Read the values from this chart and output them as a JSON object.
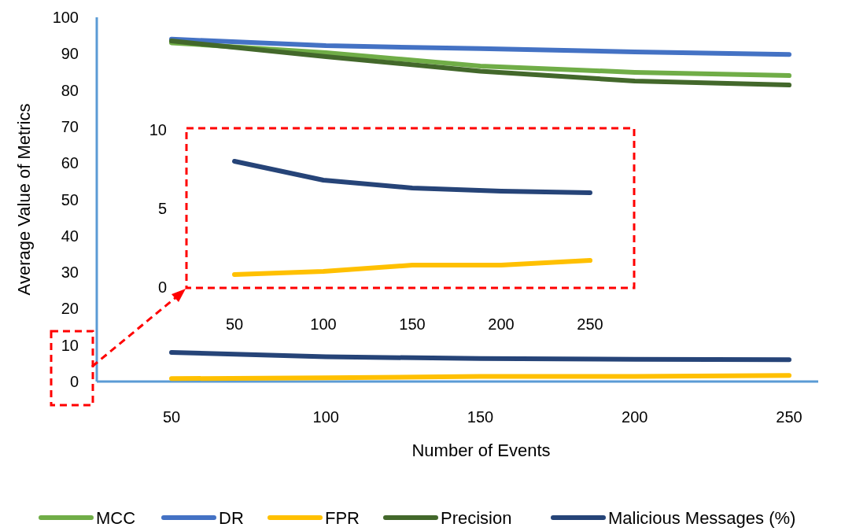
{
  "chart_data": [
    {
      "type": "line",
      "xlabel": "Number of Events",
      "ylabel": "Average Value of Metrics",
      "categories": [
        "50",
        "100",
        "150",
        "200",
        "250"
      ],
      "ylim": [
        0,
        100
      ],
      "yticks": [
        0,
        10,
        20,
        30,
        40,
        50,
        60,
        70,
        80,
        90,
        100
      ],
      "grid": false,
      "legend": "bottom",
      "marker": "none",
      "series": [
        {
          "name": "MCC",
          "color": "#70ad47",
          "values": [
            93,
            90.3,
            86.6,
            84.9,
            84
          ]
        },
        {
          "name": "DR",
          "color": "#4472c4",
          "values": [
            94,
            92.2,
            91.4,
            90.5,
            89.8
          ]
        },
        {
          "name": "FPR",
          "color": "#ffc000",
          "values": [
            0.8,
            1,
            1.4,
            1.4,
            1.7
          ]
        },
        {
          "name": "Precision",
          "color": "#43682b",
          "values": [
            93.5,
            89.2,
            85.2,
            82.5,
            81.4
          ]
        },
        {
          "name": "Malicious Messages (%)",
          "color": "#264478",
          "values": [
            8,
            6.8,
            6.3,
            6.1,
            6
          ]
        }
      ]
    },
    {
      "type": "line",
      "categories": [
        "50",
        "100",
        "150",
        "200",
        "250"
      ],
      "ylim": [
        0,
        10
      ],
      "yticks": [
        0,
        5,
        10
      ],
      "grid": false,
      "marker": "none",
      "series": [
        {
          "color": "#264478",
          "values": [
            8,
            6.8,
            6.3,
            6.1,
            6
          ]
        },
        {
          "color": "#ffc000",
          "values": [
            0.8,
            1,
            1.4,
            1.4,
            1.7
          ]
        }
      ]
    }
  ]
}
